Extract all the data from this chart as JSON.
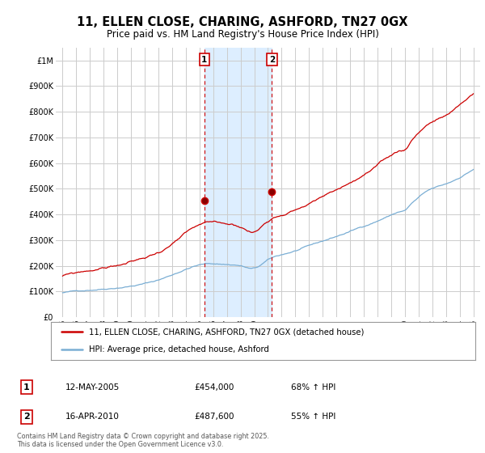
{
  "title": "11, ELLEN CLOSE, CHARING, ASHFORD, TN27 0GX",
  "subtitle": "Price paid vs. HM Land Registry's House Price Index (HPI)",
  "legend_line1": "11, ELLEN CLOSE, CHARING, ASHFORD, TN27 0GX (detached house)",
  "legend_line2": "HPI: Average price, detached house, Ashford",
  "footnote": "Contains HM Land Registry data © Crown copyright and database right 2025.\nThis data is licensed under the Open Government Licence v3.0.",
  "transaction1_date": "12-MAY-2005",
  "transaction1_price": "£454,000",
  "transaction1_hpi": "68% ↑ HPI",
  "transaction1_x": 2005.36,
  "transaction1_y": 454000,
  "transaction2_date": "16-APR-2010",
  "transaction2_price": "£487,600",
  "transaction2_hpi": "55% ↑ HPI",
  "transaction2_x": 2010.29,
  "transaction2_y": 487600,
  "red_color": "#cc0000",
  "blue_color": "#7aaed4",
  "vline_color": "#cc0000",
  "shaded_color": "#ddeeff",
  "grid_color": "#cccccc",
  "background_color": "#ffffff",
  "ylim": [
    0,
    1050000
  ],
  "xlim": [
    1994.5,
    2025.5
  ],
  "yticks": [
    0,
    100000,
    200000,
    300000,
    400000,
    500000,
    600000,
    700000,
    800000,
    900000,
    1000000
  ],
  "ytick_labels": [
    "£0",
    "£100K",
    "£200K",
    "£300K",
    "£400K",
    "£500K",
    "£600K",
    "£700K",
    "£800K",
    "£900K",
    "£1M"
  ],
  "xticks": [
    1995,
    1996,
    1997,
    1998,
    1999,
    2000,
    2001,
    2002,
    2003,
    2004,
    2005,
    2006,
    2007,
    2008,
    2009,
    2010,
    2011,
    2012,
    2013,
    2014,
    2015,
    2016,
    2017,
    2018,
    2019,
    2020,
    2021,
    2022,
    2023,
    2024,
    2025
  ],
  "xtick_labels": [
    "95",
    "96",
    "97",
    "98",
    "99",
    "00",
    "01",
    "02",
    "03",
    "04",
    "05",
    "06",
    "07",
    "08",
    "09",
    "10",
    "11",
    "12",
    "13",
    "14",
    "15",
    "16",
    "17",
    "18",
    "19",
    "20",
    "21",
    "22",
    "23",
    "24",
    "25"
  ]
}
